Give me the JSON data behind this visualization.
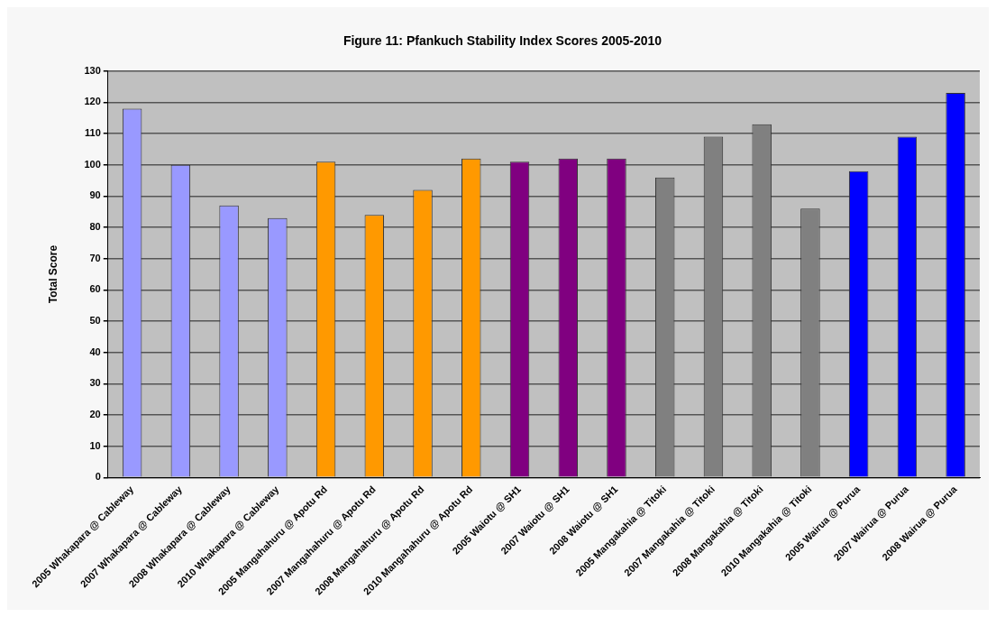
{
  "chart_data": {
    "type": "bar",
    "title": "Figure 11: Pfankuch Stability Index Scores 2005-2010",
    "ylabel": "Total Score",
    "categories": [
      "2005 Whakapara @ Cableway",
      "2007 Whakapara @ Cableway",
      "2008 Whakapara @ Cableway",
      "2010 Whakapara @ Cableway",
      "2005 Mangahahuru @ Apotu Rd",
      "2007 Mangahahuru @ Apotu Rd",
      "2008 Mangahahuru @ Apotu Rd",
      "2010 Mangahahuru @ Apotu Rd",
      "2005 Waiotu @ SH1",
      "2007 Waiotu @ SH1",
      "2008 Waiotu @ SH1",
      "2005 Mangakahia @ Titoki",
      "2007 Mangakahia @ Titoki",
      "2008 Mangakahia @ Titoki",
      "2010 Mangakahia @ Titoki",
      "2005 Wairua @ Purua",
      "2007 Wairua @ Purua",
      "2008 Wairua @ Purua"
    ],
    "values": [
      118,
      100,
      87,
      83,
      101,
      84,
      92,
      102,
      101,
      102,
      102,
      96,
      109,
      113,
      86,
      98,
      109,
      123
    ],
    "colors": [
      "#9999ff",
      "#9999ff",
      "#9999ff",
      "#9999ff",
      "#ff9900",
      "#ff9900",
      "#ff9900",
      "#ff9900",
      "#800080",
      "#800080",
      "#800080",
      "#808080",
      "#808080",
      "#808080",
      "#808080",
      "#0000ff",
      "#0000ff",
      "#0000ff"
    ],
    "ylim": [
      0,
      130
    ],
    "yticks": [
      0,
      10,
      20,
      30,
      40,
      50,
      60,
      70,
      80,
      90,
      100,
      110,
      120,
      130
    ],
    "grid": "y",
    "legend": false
  }
}
